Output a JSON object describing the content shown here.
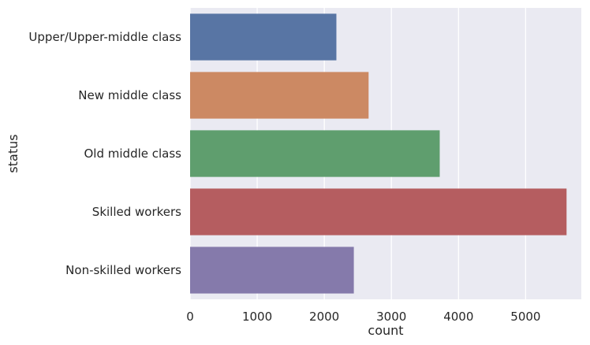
{
  "chart_data": {
    "type": "bar",
    "orientation": "horizontal",
    "title": "",
    "xlabel": "count",
    "ylabel": "status",
    "categories": [
      "Upper/Upper-middle class",
      "New middle class",
      "Old middle class",
      "Skilled workers",
      "Non-skilled workers"
    ],
    "values": [
      2180,
      2660,
      3720,
      5610,
      2440
    ],
    "colors": [
      "#5875a4",
      "#cc8963",
      "#5f9e6e",
      "#b55d60",
      "#857aab"
    ],
    "xlim": [
      0,
      5830
    ],
    "xticks": [
      0,
      1000,
      2000,
      3000,
      4000,
      5000
    ],
    "grid": true,
    "background": "#eaeaf2"
  }
}
